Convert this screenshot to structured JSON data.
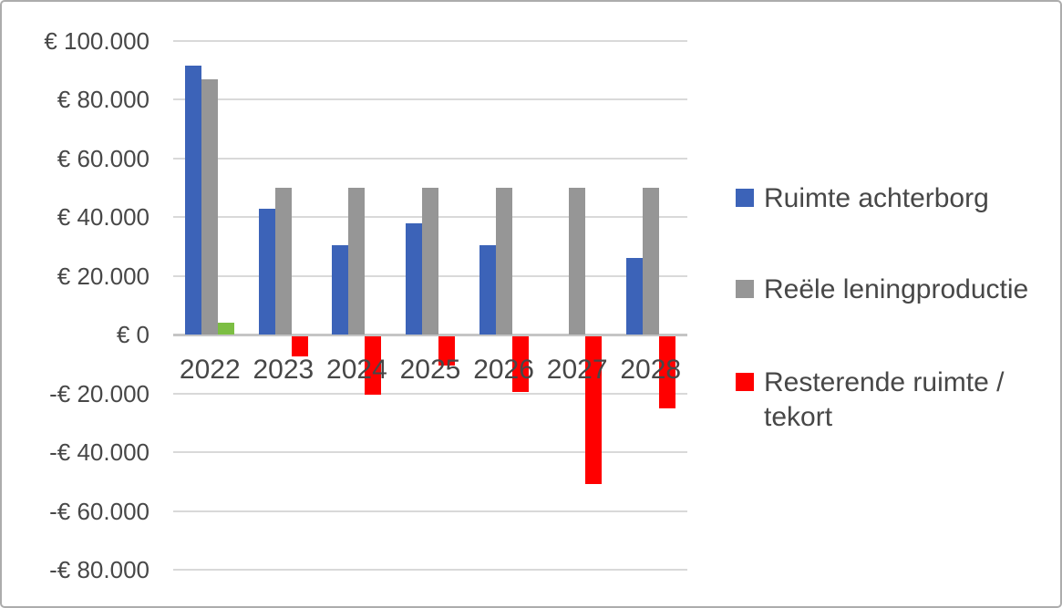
{
  "chart_data": {
    "type": "bar",
    "title": "",
    "xlabel": "",
    "ylabel": "",
    "categories": [
      "2022",
      "2023",
      "2024",
      "2025",
      "2026",
      "2027",
      "2028"
    ],
    "series": [
      {
        "name": "Ruimte achterborg",
        "color": "#3C63B8",
        "values": [
          91500,
          43000,
          30500,
          38000,
          30500,
          0,
          26000
        ]
      },
      {
        "name": "Reële leningproductie",
        "color": "#969696",
        "values": [
          87000,
          50000,
          50000,
          50000,
          50000,
          50000,
          50000
        ]
      },
      {
        "name": "Resterende ruimte / tekort",
        "color": "#FF0000",
        "values": [
          4000,
          -7000,
          -20000,
          -10000,
          -19000,
          -50500,
          -24500
        ],
        "point_colors": {
          "0": "#7CBE43"
        }
      }
    ],
    "ylim": [
      -80000,
      100000
    ],
    "ytick_step": 20000,
    "ytick_labels": [
      "€ 100.000",
      "€ 80.000",
      "€ 60.000",
      "€ 40.000",
      "€ 20.000",
      "€ 0",
      "-€ 20.000",
      "-€ 40.000",
      "-€ 60.000",
      "-€ 80.000"
    ],
    "grid": "horizontal",
    "legend_position": "right",
    "legend": [
      {
        "label": "Ruimte achterborg",
        "color": "#3C63B8"
      },
      {
        "label": "Reële leningproductie",
        "color": "#969696"
      },
      {
        "label": "Resterende ruimte /\ntekort",
        "color": "#FF0000"
      }
    ],
    "colors": {
      "gridline": "#D9D9D9",
      "zero_line": "#C5C5C5",
      "axis_text": "#474747",
      "chart_border": "#ACACAC",
      "background": "#FFFFFF"
    }
  }
}
